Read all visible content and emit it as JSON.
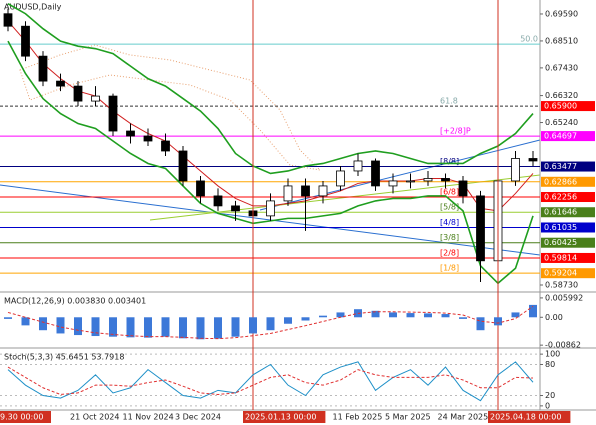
{
  "chart_data": [
    {
      "type": "candlestick",
      "title": "AUDUSD,Daily",
      "categories": [
        "9.30 00:00",
        null,
        null,
        null,
        "21 Oct 2024",
        null,
        null,
        "11 Nov 2024",
        null,
        null,
        "3 Dec 2024",
        null,
        null,
        null,
        "2025.01.13 00:00",
        null,
        null,
        null,
        null,
        "11 Feb 2025",
        null,
        null,
        "5 Mar 2025",
        null,
        null,
        "24 Mar 2025",
        null,
        null,
        "2025.04.18 00:00",
        null,
        null
      ],
      "open": [
        0.696,
        0.691,
        0.679,
        0.669,
        0.667,
        0.661,
        0.663,
        0.649,
        0.647,
        0.645,
        0.641,
        0.629,
        0.623,
        0.619,
        0.617,
        0.615,
        0.621,
        0.627,
        0.623,
        0.627,
        0.633,
        0.637,
        0.627,
        0.629,
        0.629,
        0.63,
        0.629,
        0.623,
        0.597,
        0.629,
        0.638
      ],
      "high": [
        0.698,
        0.693,
        0.681,
        0.672,
        0.669,
        0.667,
        0.664,
        0.652,
        0.65,
        0.648,
        0.643,
        0.631,
        0.626,
        0.621,
        0.619,
        0.624,
        0.63,
        0.63,
        0.629,
        0.635,
        0.64,
        0.638,
        0.632,
        0.632,
        0.633,
        0.632,
        0.631,
        0.625,
        0.631,
        0.641,
        0.641
      ],
      "low": [
        0.689,
        0.677,
        0.667,
        0.665,
        0.659,
        0.659,
        0.647,
        0.644,
        0.643,
        0.639,
        0.627,
        0.62,
        0.617,
        0.613,
        0.612,
        0.613,
        0.619,
        0.609,
        0.62,
        0.625,
        0.631,
        0.625,
        0.624,
        0.626,
        0.627,
        0.626,
        0.62,
        0.5885,
        0.595,
        0.627,
        0.635
      ],
      "close": [
        0.691,
        0.679,
        0.669,
        0.667,
        0.661,
        0.663,
        0.649,
        0.647,
        0.645,
        0.641,
        0.629,
        0.623,
        0.619,
        0.617,
        0.615,
        0.621,
        0.627,
        0.623,
        0.627,
        0.633,
        0.637,
        0.627,
        0.629,
        0.629,
        0.63,
        0.629,
        0.623,
        0.597,
        0.629,
        0.638,
        0.637
      ],
      "up_color": "#ffffff",
      "down_color": "#000000",
      "series": [
        {
          "color": "#1f9e1f",
          "values": [
            0.7,
            0.696,
            0.69,
            0.685,
            0.683,
            0.682,
            0.68,
            0.675,
            0.67,
            0.667,
            0.662,
            0.657,
            0.65,
            0.64,
            0.635,
            0.632,
            0.633,
            0.635,
            0.636,
            0.638,
            0.64,
            0.641,
            0.64,
            0.638,
            0.636,
            0.636,
            0.636,
            0.64,
            0.643,
            0.648,
            0.656
          ]
        },
        {
          "color": "#1f9e1f",
          "values": [
            0.685,
            0.672,
            0.662,
            0.656,
            0.652,
            0.65,
            0.645,
            0.64,
            0.636,
            0.634,
            0.627,
            0.62,
            0.616,
            0.614,
            0.612,
            0.613,
            0.614,
            0.614,
            0.615,
            0.616,
            0.619,
            0.621,
            0.622,
            0.622,
            0.623,
            0.623,
            0.617,
            0.595,
            0.588,
            0.594,
            0.615
          ]
        },
        {
          "color": "#d02020",
          "values": [
            0.693,
            0.685,
            0.676,
            0.67,
            0.665,
            0.663,
            0.657,
            0.652,
            0.648,
            0.645,
            0.639,
            0.633,
            0.627,
            0.622,
            0.619,
            0.619,
            0.62,
            0.621,
            0.623,
            0.625,
            0.628,
            0.629,
            0.629,
            0.629,
            0.63,
            0.63,
            0.628,
            0.618,
            0.617,
            0.624,
            0.632
          ]
        }
      ],
      "ylim": [
        0.5845,
        0.7015
      ],
      "yticks": [
        {
          "value": 0.6959,
          "label": "0.69590"
        },
        {
          "value": 0.6851,
          "label": "0.68510"
        },
        {
          "value": 0.6743,
          "label": "0.67430"
        },
        {
          "value": 0.6632,
          "label": "0.66320"
        },
        {
          "value": 0.6524,
          "label": "0.65240"
        },
        {
          "value": 0.5873,
          "label": "0.58730"
        }
      ],
      "levels": [
        {
          "value": 0.6838,
          "name": "50.0",
          "line_color": "#66cccc"
        },
        {
          "value": 0.659,
          "label": "0.65900",
          "name": "61.8",
          "label_color": "#ff0000",
          "line_color": "#333333"
        },
        {
          "value": 0.64697,
          "name": "[+2/8]P",
          "label_color": "#ff00ff",
          "line_color": "#ff00ff"
        },
        {
          "value": 0.63477,
          "name": "[8/8]",
          "label_color": "#000080",
          "line_color": "#000080"
        },
        {
          "value": 0.62866,
          "label_color": "#ff9900",
          "line_color": "#ffa500"
        },
        {
          "value": 0.62256,
          "name": "[6/8]",
          "label_color": "#ff0000",
          "line_color": "#ff0000"
        },
        {
          "value": 0.61646,
          "name": "[5/8]",
          "label_color": "#4a7f1a",
          "line_color": "#9acd32"
        },
        {
          "value": 0.61035,
          "name": "[4/8]",
          "label_color": "#0000cc",
          "line_color": "#0000cc"
        },
        {
          "value": 0.60425,
          "name": "[3/8]",
          "label_color": "#4a7f1a",
          "line_color": "#4a7f1a"
        },
        {
          "value": 0.59814,
          "name": "[2/8]",
          "label_color": "#ff0000",
          "line_color": "#ff0000"
        },
        {
          "value": 0.59204,
          "name": "[1/8]",
          "label_color": "#ff9900",
          "line_color": "#ffa500"
        }
      ],
      "highlight_color": "#d03020",
      "grid": false
    },
    {
      "type": "macd",
      "title": "MACD(12,26,9) 0.003830 0.003401",
      "series": [
        {
          "color": "#3c78d8",
          "values": [
            -0.0005,
            -0.0025,
            -0.004,
            -0.005,
            -0.0055,
            -0.0058,
            -0.006,
            -0.0062,
            -0.0063,
            -0.006,
            -0.0065,
            -0.0068,
            -0.0066,
            -0.006,
            -0.005,
            -0.004,
            -0.002,
            -0.001,
            0.0005,
            0.0015,
            0.0025,
            0.002,
            0.0015,
            0.0013,
            0.0012,
            0.001,
            -0.0005,
            -0.004,
            -0.0025,
            0.0015,
            0.00383
          ]
        },
        {
          "color": "#e03030",
          "values": [
            0.0015,
            0.0,
            -0.0015,
            -0.003,
            -0.004,
            -0.0048,
            -0.0053,
            -0.0057,
            -0.006,
            -0.006,
            -0.0062,
            -0.0065,
            -0.0066,
            -0.0063,
            -0.0057,
            -0.005,
            -0.0038,
            -0.0026,
            -0.0013,
            0.0,
            0.0012,
            0.0017,
            0.0017,
            0.0016,
            0.0015,
            0.0013,
            0.0007,
            -0.0012,
            -0.0018,
            -0.0004,
            0.003401
          ]
        }
      ],
      "ylim": [
        -0.0095,
        0.0072
      ],
      "yticks": [
        0.005992,
        {
          "value": 0,
          "label": "0.00"
        },
        -0.00862
      ]
    },
    {
      "type": "stoch",
      "title": "Stoch(5,3,3) 45.6451 53.7918",
      "series": [
        {
          "color": "#1e90c8",
          "values": [
            70,
            40,
            20,
            15,
            30,
            60,
            25,
            35,
            70,
            45,
            20,
            15,
            30,
            25,
            60,
            80,
            40,
            20,
            60,
            75,
            85,
            30,
            55,
            70,
            40,
            75,
            30,
            10,
            60,
            85,
            45.6451
          ]
        },
        {
          "color": "#e03030",
          "values": [
            75,
            55,
            35,
            22,
            25,
            40,
            40,
            38,
            45,
            50,
            38,
            25,
            22,
            25,
            40,
            55,
            60,
            45,
            40,
            50,
            70,
            60,
            55,
            55,
            55,
            60,
            50,
            35,
            35,
            55,
            53.7918
          ]
        }
      ],
      "ylim": [
        -8,
        108
      ],
      "yticks": [
        100,
        80,
        20,
        0
      ]
    }
  ]
}
